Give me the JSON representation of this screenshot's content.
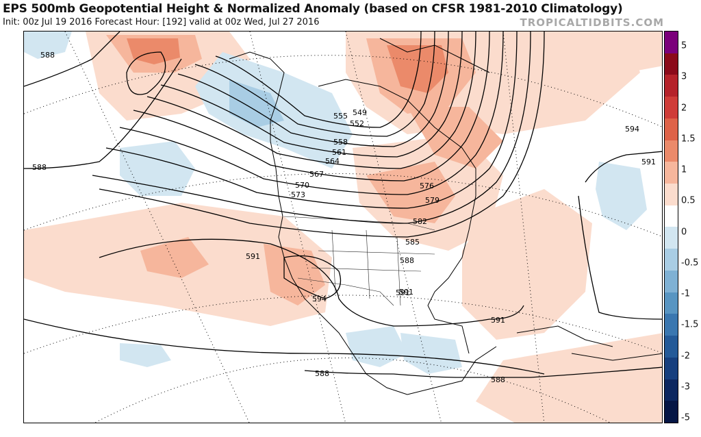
{
  "header": {
    "title": "EPS 500mb Geopotential Height & Normalized Anomaly (based on CFSR 1981-2010 Climatology)",
    "subtitle": "Init: 00z Jul 19 2016   Forecast Hour: [192]   valid at 00z Wed, Jul 27 2016",
    "brand": "TROPICALTIDBITS.COM"
  },
  "colorbar": {
    "labels": [
      "5",
      "3",
      "2",
      "1.5",
      "1",
      "0.5",
      "0",
      "-0.5",
      "-1",
      "-1.5",
      "-2",
      "-3",
      "-5"
    ],
    "colors": [
      "#7b007b",
      "#8b0a1a",
      "#b5222a",
      "#cf3c38",
      "#de6248",
      "#eb8a6a",
      "#f6b69c",
      "#fbdccd",
      "#ffffff",
      "#d2e6f1",
      "#a9cde4",
      "#7fb1d4",
      "#5895c2",
      "#3a77b0",
      "#245a98",
      "#163f7e",
      "#0c2760",
      "#051645"
    ]
  },
  "map": {
    "contour_labels": [
      "588",
      "588",
      "588",
      "588",
      "591",
      "591",
      "591",
      "591",
      "594",
      "594",
      "549",
      "552",
      "555",
      "558",
      "561",
      "564",
      "567",
      "570",
      "573",
      "576",
      "579",
      "582",
      "585",
      "588",
      "591"
    ]
  }
}
